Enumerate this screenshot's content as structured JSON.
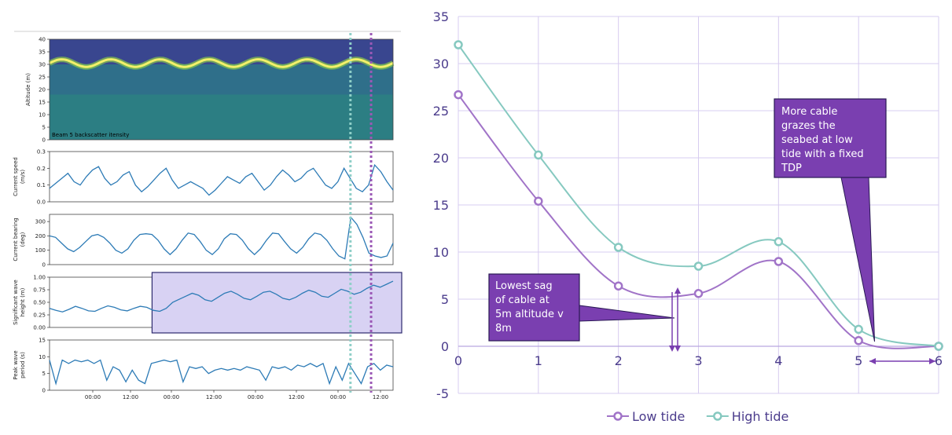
{
  "left_panel": {
    "panels": [
      {
        "type": "heatmap",
        "ylabel": "Altitude (m)",
        "yticks": [
          "0",
          "5",
          "10",
          "15",
          "20",
          "25",
          "30",
          "35",
          "40"
        ],
        "ylim": [
          0,
          40
        ],
        "caption": "Beam 5 backscatter itensity",
        "band_mean_altitude": 30.5,
        "band_amplitude": 1.5,
        "band_cycles": 7
      },
      {
        "type": "line",
        "ylabel": "Current speed (m/s)",
        "ylabel_lines": [
          "Current speed",
          "(m/s)"
        ],
        "yticks": [
          "0.0",
          "0.1",
          "0.2",
          "0.3"
        ],
        "ylim": [
          0,
          0.3
        ],
        "values": [
          0.08,
          0.11,
          0.14,
          0.17,
          0.12,
          0.1,
          0.15,
          0.19,
          0.21,
          0.14,
          0.1,
          0.12,
          0.16,
          0.18,
          0.1,
          0.06,
          0.09,
          0.13,
          0.17,
          0.2,
          0.13,
          0.08,
          0.1,
          0.12,
          0.1,
          0.08,
          0.04,
          0.07,
          0.11,
          0.15,
          0.13,
          0.11,
          0.15,
          0.17,
          0.12,
          0.07,
          0.1,
          0.15,
          0.19,
          0.16,
          0.12,
          0.14,
          0.18,
          0.2,
          0.15,
          0.1,
          0.08,
          0.12,
          0.2,
          0.14,
          0.08,
          0.06,
          0.1,
          0.22,
          0.18,
          0.12,
          0.07
        ]
      },
      {
        "type": "line",
        "ylabel": "Current bearing (deg)",
        "ylabel_lines": [
          "Current bearing",
          "(deg)"
        ],
        "yticks": [
          "0",
          "100",
          "200",
          "300"
        ],
        "ylim": [
          0,
          350
        ],
        "values": [
          200,
          190,
          150,
          110,
          90,
          120,
          160,
          200,
          210,
          190,
          150,
          100,
          80,
          110,
          170,
          210,
          215,
          210,
          170,
          110,
          70,
          110,
          170,
          220,
          210,
          160,
          100,
          70,
          110,
          180,
          215,
          210,
          170,
          110,
          70,
          110,
          170,
          220,
          215,
          160,
          110,
          80,
          120,
          180,
          220,
          210,
          170,
          110,
          60,
          40,
          330,
          280,
          190,
          80,
          60,
          50,
          60,
          150
        ]
      },
      {
        "type": "line",
        "ylabel": "Significant wave height (m)",
        "ylabel_lines": [
          "Significant wave",
          "height (m)"
        ],
        "yticks": [
          "0.00",
          "0.25",
          "0.50",
          "0.75",
          "1.00"
        ],
        "ylim": [
          0,
          1.0
        ],
        "values": [
          0.38,
          0.34,
          0.31,
          0.36,
          0.42,
          0.38,
          0.33,
          0.32,
          0.38,
          0.43,
          0.4,
          0.35,
          0.33,
          0.38,
          0.42,
          0.4,
          0.34,
          0.32,
          0.38,
          0.5,
          0.56,
          0.62,
          0.68,
          0.64,
          0.55,
          0.52,
          0.6,
          0.68,
          0.72,
          0.66,
          0.58,
          0.55,
          0.62,
          0.7,
          0.72,
          0.66,
          0.58,
          0.55,
          0.6,
          0.68,
          0.74,
          0.7,
          0.62,
          0.6,
          0.68,
          0.76,
          0.72,
          0.66,
          0.7,
          0.78,
          0.84,
          0.8,
          0.86,
          0.92
        ]
      },
      {
        "type": "line",
        "ylabel": "Peak wave period (s)",
        "ylabel_lines": [
          "Peak wave",
          "period (s)"
        ],
        "yticks": [
          "0",
          "5",
          "10",
          "15"
        ],
        "ylim": [
          0,
          15
        ],
        "values": [
          9,
          2,
          9,
          8,
          9,
          8.5,
          9,
          8,
          9,
          3,
          7,
          6,
          2.5,
          6,
          3,
          2,
          8,
          8.5,
          9,
          8.5,
          9,
          2.5,
          7,
          6.5,
          7,
          5,
          6,
          6.5,
          6,
          6.5,
          6,
          7,
          6.5,
          6,
          3,
          7,
          6.5,
          7,
          6,
          7.5,
          7,
          8,
          7,
          8,
          2,
          7,
          3,
          8,
          5,
          2,
          7,
          8,
          6,
          7.5,
          7
        ]
      }
    ],
    "xticks": [
      "00:00",
      "12:00",
      "00:00",
      "12:00",
      "00:00",
      "12:00",
      "00:00",
      "12:00"
    ],
    "markers": [
      {
        "position": 0.876,
        "color": "#8fcfc8"
      },
      {
        "position": 0.936,
        "color": "#9b59b6"
      }
    ],
    "highlight": {
      "from": 0.39,
      "to": 1.0,
      "color": "#d8d2f3"
    }
  },
  "chart_data": {
    "type": "line",
    "title": "",
    "xlabel": "",
    "ylabel": "",
    "xlim": [
      0,
      6
    ],
    "ylim": [
      -5,
      35
    ],
    "xticks": [
      0,
      1,
      2,
      3,
      4,
      5,
      6
    ],
    "yticks": [
      -5,
      0,
      5,
      10,
      15,
      20,
      25,
      30,
      35
    ],
    "grid": true,
    "legend_placement": "bottom",
    "series": [
      {
        "name": "Low tide",
        "color": "#a174c8",
        "x": [
          0,
          1,
          2,
          3,
          4,
          5,
          6
        ],
        "y": [
          26.7,
          15.4,
          6.4,
          5.6,
          9.0,
          0.6,
          0.0
        ]
      },
      {
        "name": "High tide",
        "color": "#86c9c0",
        "x": [
          0,
          1,
          2,
          3,
          4,
          5,
          6
        ],
        "y": [
          32.0,
          20.3,
          10.5,
          8.5,
          11.1,
          1.8,
          0.0
        ]
      }
    ],
    "annotations": [
      {
        "text": "Lowest sag of cable at 5m altitude v 8m",
        "lines": [
          "Lowest sag",
          "of cable at",
          "5m altitude v",
          "8m"
        ],
        "points_to": [
          2.7,
          3.0
        ]
      },
      {
        "text": "More cable grazes the seabed at low tide with a fixed TDP",
        "lines": [
          "More cable",
          "grazes the",
          "seabed at low",
          "tide with a fixed",
          "TDP"
        ],
        "points_to": [
          5.2,
          0.5
        ]
      }
    ]
  }
}
